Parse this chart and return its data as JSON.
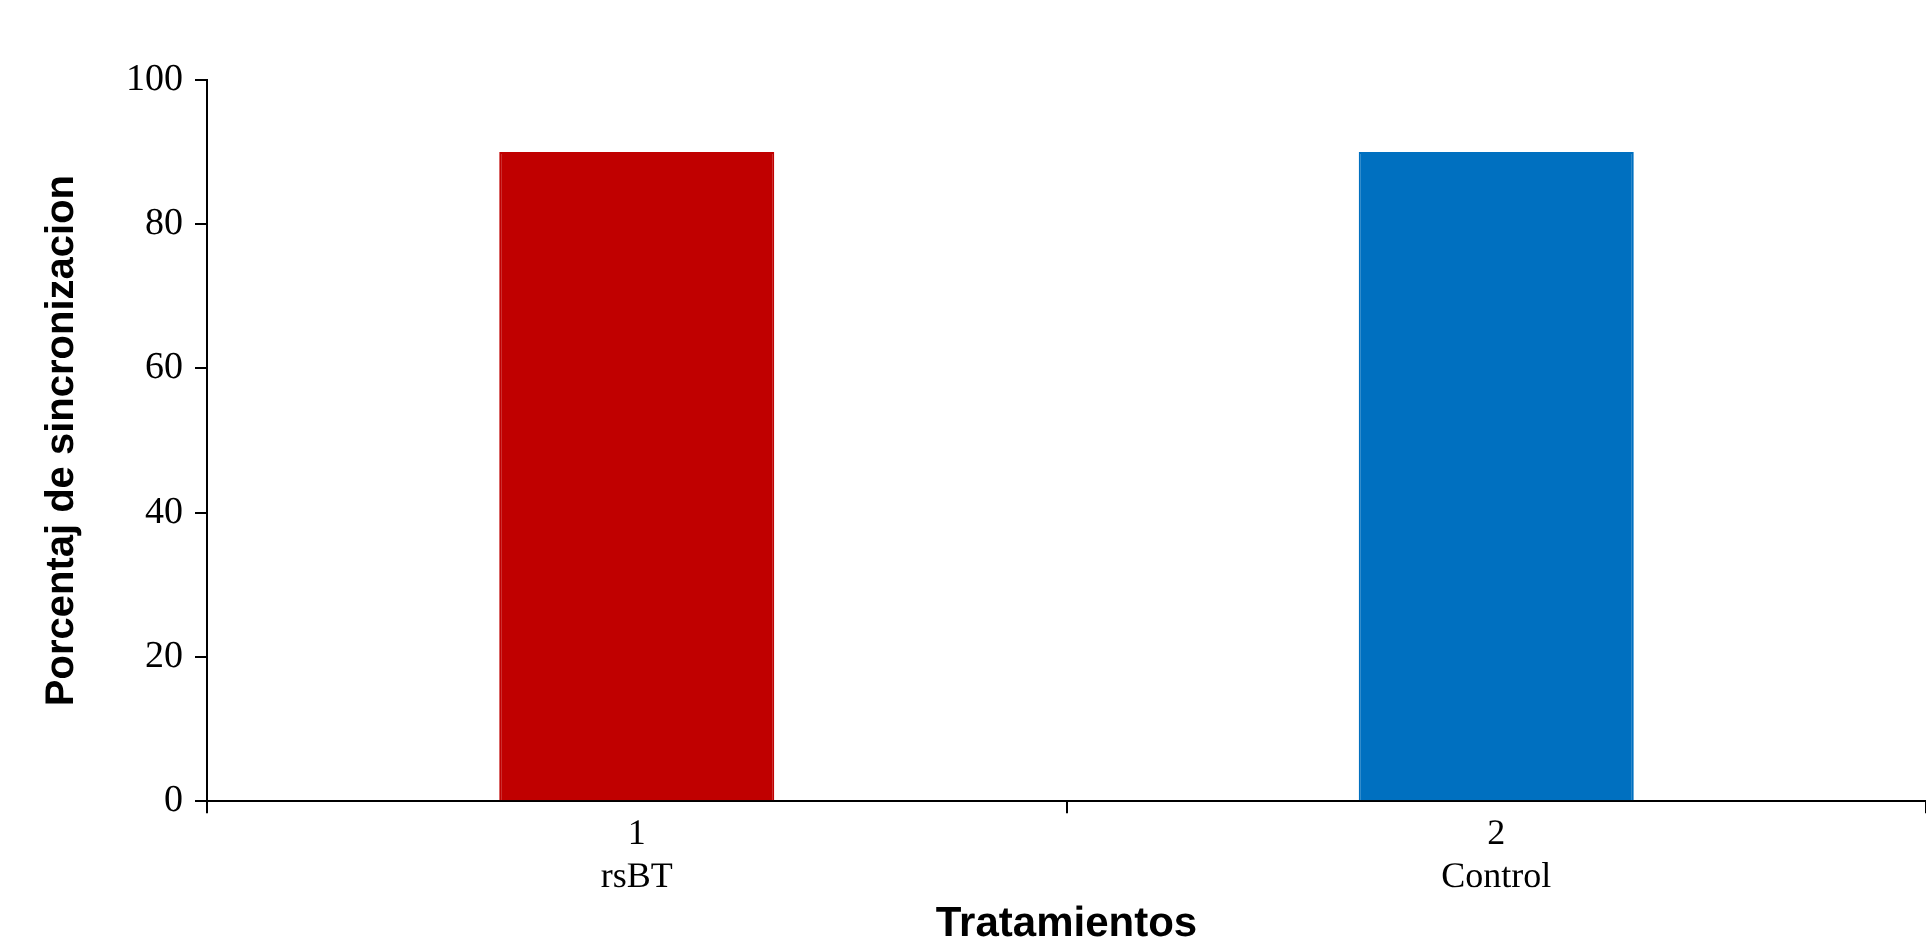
{
  "chart_data": {
    "type": "bar",
    "xlabel": "Tratamientos",
    "ylabel": "Porcentaj de sincronizacion",
    "categories": [
      "1\nrsBT",
      "2\nControl"
    ],
    "values": [
      90,
      90
    ],
    "colors": [
      "#c00000",
      "#0070c0"
    ],
    "ylim": [
      0,
      100
    ],
    "yticks": [
      0,
      20,
      40,
      60,
      80,
      100
    ],
    "grid": false,
    "legend": false
  }
}
